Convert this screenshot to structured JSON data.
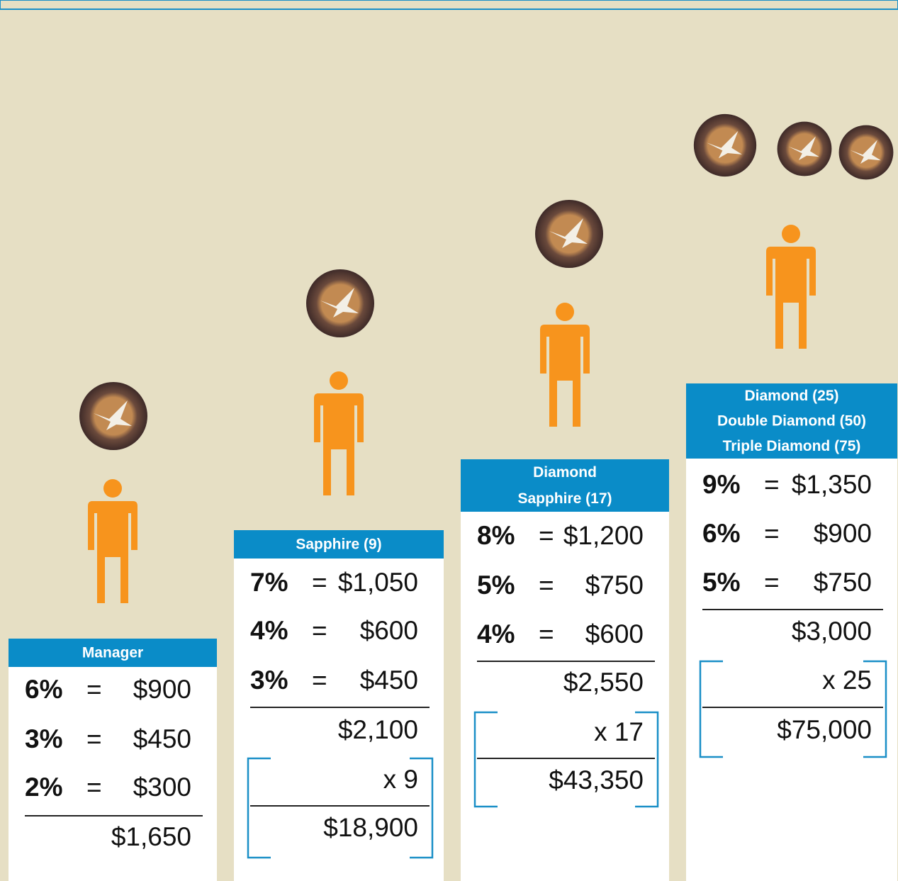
{
  "columns": [
    {
      "title": [
        "Manager"
      ],
      "rows": [
        {
          "pct": "6%",
          "eq": "=",
          "amount": "$900"
        },
        {
          "pct": "3%",
          "eq": "=",
          "amount": "$450"
        },
        {
          "pct": "2%",
          "eq": "=",
          "amount": "$300"
        }
      ],
      "total": "$1,650"
    },
    {
      "title": [
        "Sapphire (9)"
      ],
      "rows": [
        {
          "pct": "7%",
          "eq": "=",
          "amount": "$1,050"
        },
        {
          "pct": "4%",
          "eq": "=",
          "amount": "$600"
        },
        {
          "pct": "3%",
          "eq": "=",
          "amount": "$450"
        }
      ],
      "total": "$2,100",
      "multiplier": "x 9",
      "grand_total": "$18,900"
    },
    {
      "title": [
        "Diamond",
        "Sapphire (17)"
      ],
      "rows": [
        {
          "pct": "8%",
          "eq": "=",
          "amount": "$1,200"
        },
        {
          "pct": "5%",
          "eq": "=",
          "amount": "$750"
        },
        {
          "pct": "4%",
          "eq": "=",
          "amount": "$600"
        }
      ],
      "total": "$2,550",
      "multiplier": "x 17",
      "grand_total": "$43,350"
    },
    {
      "title": [
        "Diamond (25)",
        "Double Diamond (50)",
        "Triple Diamond (75)"
      ],
      "rows": [
        {
          "pct": "9%",
          "eq": "=",
          "amount": "$1,350"
        },
        {
          "pct": "6%",
          "eq": "=",
          "amount": "$900"
        },
        {
          "pct": "5%",
          "eq": "=",
          "amount": "$750"
        }
      ],
      "total": "$3,000",
      "multiplier": "x 25",
      "grand_total": "$75,000"
    }
  ]
}
